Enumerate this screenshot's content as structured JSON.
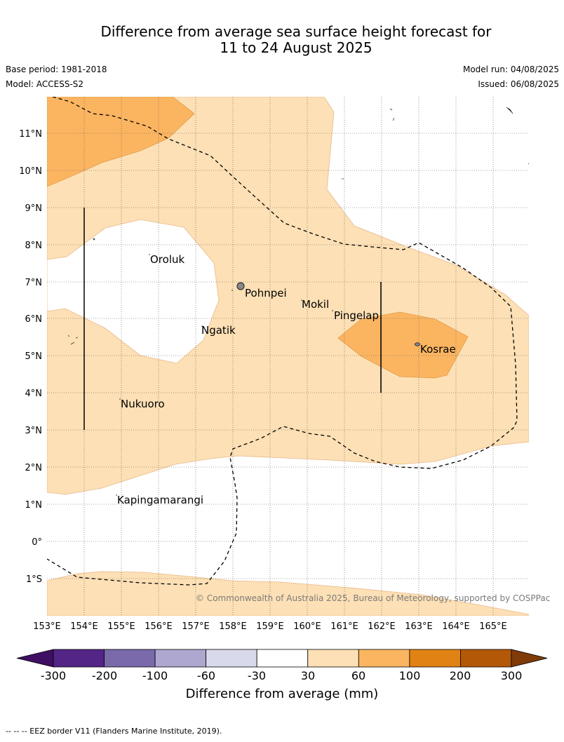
{
  "header": {
    "title_line1": "Difference from average sea surface height forecast for",
    "title_line2": "11 to 24 August 2025",
    "base_period": "Base period: 1981-2018",
    "model": "Model: ACCESS-S2",
    "model_run": "Model run: 04/08/2025",
    "issued": "Issued: 06/08/2025"
  },
  "map": {
    "lon_labels": [
      "153°E",
      "154°E",
      "155°E",
      "156°E",
      "157°E",
      "158°E",
      "159°E",
      "160°E",
      "161°E",
      "162°E",
      "163°E",
      "164°E",
      "165°E"
    ],
    "lat_labels": [
      "11°N",
      "10°N",
      "9°N",
      "8°N",
      "7°N",
      "6°N",
      "5°N",
      "4°N",
      "3°N",
      "2°N",
      "1°N",
      "0°",
      "1°S"
    ],
    "places": [
      {
        "name": "Oroluk"
      },
      {
        "name": "Pohnpei"
      },
      {
        "name": "Mokil"
      },
      {
        "name": "Pingelap"
      },
      {
        "name": "Ngatik"
      },
      {
        "name": "Kosrae"
      },
      {
        "name": "Nukuoro"
      },
      {
        "name": "Kapingamarangi"
      }
    ],
    "copyright": "© Commonwealth of Australia 2025, Bureau of Meteorology, supported by COSPPac"
  },
  "legend": {
    "ticks": [
      "-300",
      "-200",
      "-100",
      "-60",
      "-30",
      "30",
      "60",
      "100",
      "200",
      "300"
    ],
    "colors": [
      "#3f0f63",
      "#532586",
      "#7b6aab",
      "#aea7cf",
      "#d9d9ec",
      "#ffffff",
      "#fde0b5",
      "#fbb561",
      "#e08214",
      "#b35806",
      "#7f3b08"
    ],
    "title": "Difference from average (mm)"
  },
  "footnote": "-- -- -- EEZ border V11 (Flanders Marine Institute, 2019)."
}
